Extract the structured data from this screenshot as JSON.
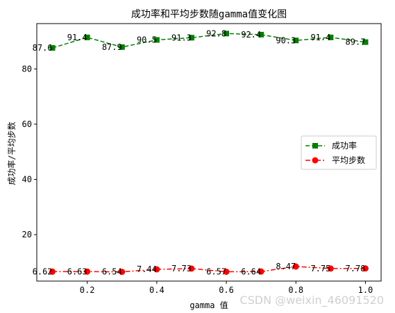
{
  "chart_data": {
    "type": "line",
    "title": "成功率和平均步数随gamma值变化图",
    "xlabel": "gamma 值",
    "ylabel": "成功率/平均步数",
    "x": [
      0.1,
      0.2,
      0.3,
      0.4,
      0.5,
      0.6,
      0.7,
      0.8,
      0.9,
      1.0
    ],
    "xlim": [
      0.055,
      1.045
    ],
    "ylim": [
      3.2,
      96.4
    ],
    "xticks": [
      0.2,
      0.4,
      0.6,
      0.8,
      1.0
    ],
    "xtick_labels": [
      "0.2",
      "0.4",
      "0.6",
      "0.8",
      "1.0"
    ],
    "yticks": [
      20,
      40,
      60,
      80
    ],
    "ytick_labels": [
      "20",
      "40",
      "60",
      "80"
    ],
    "grid": false,
    "legend_position": "center-right",
    "series": [
      {
        "name": "成功率",
        "values": [
          87.6,
          91.4,
          87.9,
          90.5,
          91.3,
          92.8,
          92.4,
          90.3,
          91.4,
          89.7
        ],
        "labels": [
          "87.6",
          "91.4",
          "87.9",
          "90.5",
          "91.3",
          "92.8",
          "92.4",
          "90.3",
          "91.4",
          "89.7"
        ],
        "color": "#008000",
        "marker": "square",
        "linestyle": "dashed"
      },
      {
        "name": "平均步数",
        "values": [
          6.62,
          6.63,
          6.54,
          7.44,
          7.73,
          6.57,
          6.64,
          8.47,
          7.75,
          7.78
        ],
        "labels": [
          "6.62",
          "6.63",
          "6.54",
          "7.44",
          "7.73",
          "6.57",
          "6.64",
          "8.47",
          "7.75",
          "7.78"
        ],
        "color": "#ff0000",
        "marker": "circle",
        "linestyle": "dashdot"
      }
    ]
  },
  "watermark": "CSDN @weixin_46091520"
}
